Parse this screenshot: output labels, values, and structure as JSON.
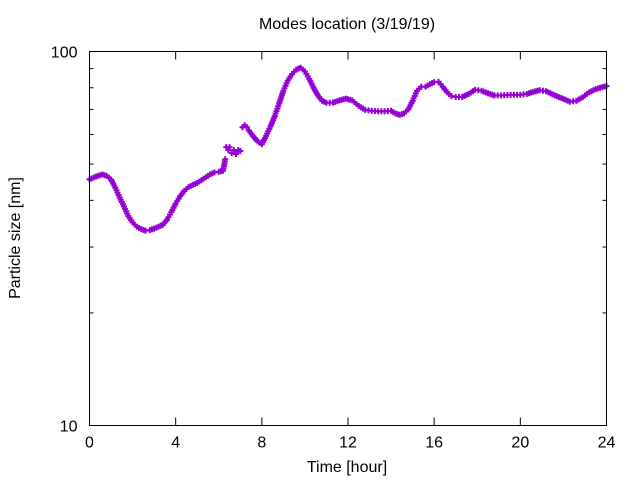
{
  "chart_data": {
    "type": "scatter",
    "title": "Modes location (3/19/19)",
    "xlabel": "Time [hour]",
    "ylabel": "Particle size [nm]",
    "xlim": [
      0,
      24
    ],
    "ylim": [
      10,
      100
    ],
    "yscale": "log",
    "x_ticks": [
      0,
      4,
      8,
      12,
      16,
      20,
      24
    ],
    "x_tick_labels": [
      "0",
      "4",
      "8",
      "12",
      "16",
      "20",
      "24"
    ],
    "y_ticks": [
      10,
      100
    ],
    "y_tick_labels": [
      "10",
      "100"
    ],
    "grid": false,
    "legend": "none",
    "colors": {
      "series": "#9400d3",
      "axis": "#000000",
      "background": "#ffffff"
    },
    "series": [
      {
        "marker": "plus-dot",
        "points": [
          [
            0.0,
            45.5
          ],
          [
            0.3,
            46.3
          ],
          [
            0.6,
            46.9
          ],
          [
            0.8,
            46.5
          ],
          [
            1.0,
            45.5
          ],
          [
            1.2,
            43.2
          ],
          [
            1.4,
            40.7
          ],
          [
            1.6,
            38.5
          ],
          [
            1.8,
            36.3
          ],
          [
            2.0,
            34.9
          ],
          [
            2.2,
            34.0
          ],
          [
            2.4,
            33.5
          ],
          [
            2.6,
            33.2
          ],
          [
            2.8,
            33.3
          ],
          [
            3.0,
            33.6
          ],
          [
            3.2,
            34.0
          ],
          [
            3.4,
            34.4
          ],
          [
            3.6,
            35.5
          ],
          [
            3.8,
            37.2
          ],
          [
            4.0,
            39.2
          ],
          [
            4.2,
            41.0
          ],
          [
            4.4,
            42.4
          ],
          [
            4.6,
            43.4
          ],
          [
            4.8,
            44.0
          ],
          [
            5.0,
            44.5
          ],
          [
            5.2,
            45.3
          ],
          [
            5.4,
            46.1
          ],
          [
            5.6,
            46.9
          ],
          [
            5.8,
            47.5
          ],
          [
            6.0,
            47.7
          ],
          [
            6.2,
            48.0
          ],
          [
            6.3,
            51.5
          ],
          [
            6.35,
            55.5
          ],
          [
            6.45,
            54.5
          ],
          [
            6.5,
            55.5
          ],
          [
            6.6,
            53.5
          ],
          [
            6.7,
            54.5
          ],
          [
            6.8,
            53.2
          ],
          [
            6.9,
            54.5
          ],
          [
            7.0,
            54.2
          ],
          [
            7.1,
            62.7
          ],
          [
            7.2,
            63.5
          ],
          [
            7.3,
            62.8
          ],
          [
            7.4,
            61.5
          ],
          [
            7.6,
            59.3
          ],
          [
            7.8,
            57.5
          ],
          [
            8.0,
            56.5
          ],
          [
            8.2,
            59.5
          ],
          [
            8.4,
            63.0
          ],
          [
            8.6,
            67.2
          ],
          [
            8.8,
            72.5
          ],
          [
            9.0,
            78.5
          ],
          [
            9.2,
            83.5
          ],
          [
            9.4,
            87.0
          ],
          [
            9.6,
            89.5
          ],
          [
            9.8,
            90.5
          ],
          [
            10.0,
            88.5
          ],
          [
            10.2,
            84.5
          ],
          [
            10.4,
            80.0
          ],
          [
            10.6,
            76.3
          ],
          [
            10.8,
            73.8
          ],
          [
            11.0,
            72.9
          ],
          [
            11.3,
            73.0
          ],
          [
            11.6,
            74.0
          ],
          [
            11.9,
            74.8
          ],
          [
            12.2,
            74.0
          ],
          [
            12.5,
            71.5
          ],
          [
            12.8,
            69.8
          ],
          [
            13.1,
            69.4
          ],
          [
            13.4,
            69.2
          ],
          [
            13.7,
            69.2
          ],
          [
            14.0,
            69.4
          ],
          [
            14.2,
            68.3
          ],
          [
            14.4,
            67.7
          ],
          [
            14.6,
            68.3
          ],
          [
            14.8,
            70.0
          ],
          [
            15.0,
            73.8
          ],
          [
            15.2,
            78.5
          ],
          [
            15.4,
            80.5
          ],
          [
            15.6,
            80.5
          ],
          [
            15.8,
            81.8
          ],
          [
            16.0,
            82.8
          ],
          [
            16.2,
            83.0
          ],
          [
            16.4,
            80.5
          ],
          [
            16.6,
            77.8
          ],
          [
            16.8,
            76.0
          ],
          [
            17.0,
            75.6
          ],
          [
            17.3,
            75.6
          ],
          [
            17.6,
            77.0
          ],
          [
            17.9,
            79.0
          ],
          [
            18.2,
            78.5
          ],
          [
            18.5,
            77.3
          ],
          [
            18.8,
            76.3
          ],
          [
            19.1,
            76.3
          ],
          [
            19.4,
            76.5
          ],
          [
            19.7,
            76.6
          ],
          [
            20.0,
            76.6
          ],
          [
            20.3,
            77.0
          ],
          [
            20.6,
            78.0
          ],
          [
            20.9,
            78.8
          ],
          [
            21.2,
            78.3
          ],
          [
            21.5,
            76.8
          ],
          [
            21.8,
            75.5
          ],
          [
            22.1,
            74.3
          ],
          [
            22.3,
            73.4
          ],
          [
            22.6,
            73.8
          ],
          [
            22.9,
            75.5
          ],
          [
            23.2,
            77.8
          ],
          [
            23.5,
            79.3
          ],
          [
            23.8,
            80.3
          ],
          [
            24.0,
            80.8
          ]
        ]
      }
    ]
  }
}
